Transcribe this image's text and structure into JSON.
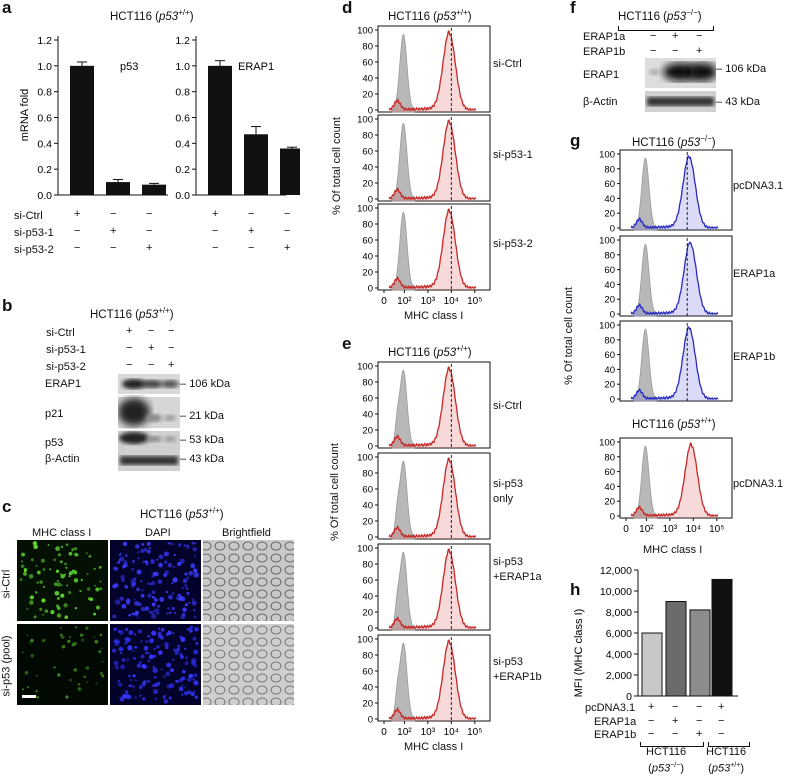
{
  "panels": {
    "a": {
      "label": "a",
      "title": "HCT116 (p53+/+)",
      "ylabel": "mRNA fold",
      "yticks": [
        "0.0",
        "0.2",
        "0.4",
        "0.6",
        "0.8",
        "1.0",
        "1.2"
      ],
      "row_labels": [
        "si-Ctrl",
        "si-p53-1",
        "si-p53-2"
      ],
      "marks": [
        [
          "+",
          "−",
          "−"
        ],
        [
          "−",
          "+",
          "−"
        ],
        [
          "−",
          "−",
          "+"
        ]
      ]
    },
    "b": {
      "label": "b",
      "title": "HCT116 (p53+/+)",
      "row_labels": [
        "si-Ctrl",
        "si-p53-1",
        "si-p53-2"
      ],
      "marks": [
        [
          "+",
          "−",
          "−"
        ],
        [
          "−",
          "+",
          "−"
        ],
        [
          "−",
          "−",
          "+"
        ]
      ],
      "bands": [
        "ERAP1",
        "p21",
        "p53",
        "β-Actin"
      ],
      "sizes": [
        "106 kDa",
        "21 kDa",
        "53 kDa",
        "43 kDa"
      ]
    },
    "c": {
      "label": "c",
      "title": "HCT116 (p53+/+)",
      "cols": [
        "MHC class I",
        "DAPI",
        "Brightfield"
      ],
      "rows": [
        "si-Ctrl",
        "si-p53 (pool)"
      ]
    },
    "d": {
      "label": "d",
      "title": "HCT116 (p53+/+)",
      "ylabel": "% Of total cell count",
      "xlabel": "MHC class I",
      "rows": [
        "si-Ctrl",
        "si-p53-1",
        "si-p53-2"
      ]
    },
    "e": {
      "label": "e",
      "title": "HCT116 (p53+/+)",
      "ylabel": "% Of total cell count",
      "xlabel": "MHC class I",
      "rows": [
        "si-Ctrl",
        "si-p53 only",
        "si-p53 +ERAP1a",
        "si-p53 +ERAP1b"
      ]
    },
    "f": {
      "label": "f",
      "title": "HCT116 (p53−/−)",
      "row_labels": [
        "ERAP1a",
        "ERAP1b"
      ],
      "marks": [
        [
          "−",
          "+",
          "−"
        ],
        [
          "−",
          "−",
          "+"
        ]
      ],
      "bands": [
        "ERAP1",
        "β-Actin"
      ],
      "sizes": [
        "106 kDa",
        "43 kDa"
      ]
    },
    "g": {
      "label": "g",
      "title": "HCT116 (p53−/−)",
      "subtitle": "HCT116 (p53+/+)",
      "ylabel": "% Of total cell count",
      "xlabel": "MHC class I",
      "rows": [
        "pcDNA3.1",
        "ERAP1a",
        "ERAP1b",
        "pcDNA3.1"
      ]
    },
    "h": {
      "label": "h",
      "ylabel": "MFI (MHC class I)",
      "yticks": [
        "0",
        "2,000",
        "4,000",
        "6,000",
        "8,000",
        "10,000",
        "12,000"
      ],
      "row_labels": [
        "pcDNA3.1",
        "ERAP1a",
        "ERAP1b"
      ],
      "marks": [
        [
          "+",
          "−",
          "−",
          "+"
        ],
        [
          "−",
          "+",
          "−",
          "−"
        ],
        [
          "−",
          "−",
          "+",
          "−"
        ]
      ],
      "groups": [
        "HCT116 (p53−/−)",
        "HCT116 (p53+/+)"
      ]
    }
  },
  "hist_ticks": [
    "0",
    "10²",
    "10³",
    "10⁴",
    "10⁵"
  ],
  "hist_yticks": [
    "0",
    "20",
    "40",
    "60",
    "80",
    "100"
  ],
  "chart_data": [
    {
      "type": "bar",
      "title": "p53",
      "categories": [
        "si-Ctrl",
        "si-p53-1",
        "si-p53-2"
      ],
      "values": [
        1.0,
        0.1,
        0.08
      ],
      "errors": [
        0.03,
        0.02,
        0.01
      ],
      "ylabel": "mRNA fold",
      "ylim": [
        0,
        1.2
      ]
    },
    {
      "type": "bar",
      "title": "ERAP1",
      "categories": [
        "si-Ctrl",
        "si-p53-1",
        "si-p53-2"
      ],
      "values": [
        1.0,
        0.47,
        0.36
      ],
      "errors": [
        0.04,
        0.06,
        0.01
      ],
      "ylabel": "mRNA fold",
      "ylim": [
        0,
        1.2
      ]
    },
    {
      "type": "bar",
      "categories": [
        "pcDNA3.1 (p53−/−)",
        "ERAP1a (p53−/−)",
        "ERAP1b (p53−/−)",
        "pcDNA3.1 (p53+/+)"
      ],
      "values": [
        6000,
        9000,
        8200,
        11100
      ],
      "ylabel": "MFI (MHC class I)",
      "ylim": [
        0,
        12000
      ],
      "colors": [
        "#c8c8c8",
        "#6b6b6b",
        "#8c8c8c",
        "#111111"
      ]
    }
  ]
}
